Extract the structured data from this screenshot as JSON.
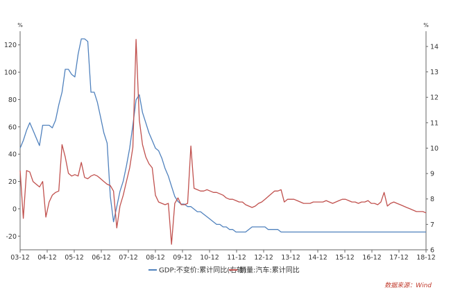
{
  "chart_data": {
    "type": "line",
    "title": "",
    "x_labels": [
      "03-12",
      "04-12",
      "05-12",
      "06-12",
      "07-12",
      "08-12",
      "09-12",
      "10-12",
      "11-12",
      "12-12",
      "13-12",
      "14-12",
      "15-12",
      "16-12",
      "17-12",
      "18-12"
    ],
    "left_axis": {
      "unit": "%",
      "ylim": [
        -30,
        130
      ],
      "ticks": [
        -20,
        0,
        20,
        40,
        60,
        80,
        100,
        120
      ]
    },
    "right_axis": {
      "unit": "%",
      "ylim": [
        6,
        14.6
      ],
      "ticks": [
        6,
        7,
        8,
        9,
        10,
        11,
        12,
        13,
        14
      ]
    },
    "series": [
      {
        "name": "GDP:不变价:累计同比(右轴)",
        "axis": "right",
        "color": "#4f81bd",
        "x": [
          0,
          0.5,
          1,
          1.5,
          2,
          2.5,
          3,
          3.5,
          4,
          4.5,
          5,
          5.5,
          6,
          6.5,
          7,
          7.5,
          8,
          8.5,
          9,
          9.5,
          10,
          10.5,
          11,
          11.5,
          12,
          12.5,
          13,
          13.5,
          14,
          14.5,
          15,
          15.5,
          16,
          16.5,
          17,
          17.5,
          18,
          18.5,
          19,
          19.5,
          20,
          20.5,
          21,
          21.5,
          22,
          22.5,
          23,
          23.5,
          24,
          24.5,
          25,
          25.5,
          26,
          26.5,
          27,
          27.5,
          28,
          28.5,
          29,
          29.5,
          30,
          30.5,
          31,
          31.5,
          32,
          32.5,
          33,
          33.5,
          34,
          34.5,
          35,
          35.5,
          36,
          36.5,
          37,
          37.5,
          38,
          38.5,
          39,
          39.5,
          40,
          40.5,
          41,
          41.5,
          42,
          42.5,
          43,
          43.5,
          44,
          44.5,
          45,
          45.5,
          46,
          46.5,
          47,
          47.5,
          48,
          48.5,
          49,
          49.5,
          50,
          50.5,
          51,
          51.5,
          52,
          52.5,
          53,
          53.5,
          54,
          54.5,
          55,
          55.5,
          56,
          56.5,
          57,
          57.5,
          58,
          58.5,
          59,
          59.5,
          60,
          60.5,
          61,
          61.5,
          62,
          62.5,
          63
        ],
        "y": [
          10.0,
          10.3,
          10.7,
          11.0,
          10.7,
          10.4,
          10.1,
          10.9,
          10.9,
          10.9,
          10.8,
          11.1,
          11.7,
          12.2,
          13.1,
          13.1,
          12.9,
          12.8,
          13.7,
          14.3,
          14.3,
          14.2,
          12.2,
          12.2,
          11.8,
          11.2,
          10.6,
          10.2,
          8.1,
          7.1,
          7.7,
          8.3,
          8.7,
          9.3,
          10.0,
          10.9,
          11.9,
          12.1,
          11.4,
          11.0,
          10.6,
          10.3,
          10.0,
          9.9,
          9.6,
          9.2,
          8.9,
          8.5,
          8.1,
          7.9,
          7.8,
          7.8,
          7.7,
          7.7,
          7.6,
          7.5,
          7.5,
          7.4,
          7.3,
          7.2,
          7.1,
          7.0,
          7.0,
          6.9,
          6.9,
          6.8,
          6.8,
          6.7,
          6.7,
          6.7,
          6.7,
          6.8,
          6.9,
          6.9,
          6.9,
          6.9,
          6.9,
          6.8,
          6.8,
          6.8,
          6.8,
          6.7,
          6.7,
          6.7,
          6.7,
          6.7,
          6.7,
          6.7,
          6.7,
          6.7,
          6.7,
          6.7,
          6.7,
          6.7,
          6.7,
          6.7,
          6.7,
          6.7,
          6.7,
          6.7,
          6.7,
          6.7,
          6.7,
          6.7,
          6.7,
          6.7,
          6.7,
          6.7,
          6.7,
          6.7,
          6.7,
          6.7,
          6.7,
          6.7,
          6.7,
          6.7,
          6.7,
          6.7,
          6.7,
          6.7,
          6.7,
          6.7,
          6.7,
          6.7,
          6.7,
          6.7,
          6.7
        ]
      },
      {
        "name": "销量:汽车:累计同比",
        "axis": "left",
        "color": "#c0504d",
        "x": [
          0,
          0.5,
          1,
          1.5,
          2,
          2.5,
          3,
          3.5,
          4,
          4.5,
          5,
          5.5,
          6,
          6.5,
          7,
          7.5,
          8,
          8.5,
          9,
          9.5,
          10,
          10.5,
          11,
          11.5,
          12,
          12.5,
          13,
          13.5,
          14,
          14.5,
          15,
          15.5,
          16,
          16.5,
          17,
          17.5,
          18,
          18.5,
          19,
          19.5,
          20,
          20.5,
          21,
          21.5,
          22,
          22.5,
          23,
          23.5,
          24,
          24.5,
          25,
          25.5,
          26,
          26.5,
          27,
          27.5,
          28,
          28.5,
          29,
          29.5,
          30,
          30.5,
          31,
          31.5,
          32,
          32.5,
          33,
          33.5,
          34,
          34.5,
          35,
          35.5,
          36,
          36.5,
          37,
          37.5,
          38,
          38.5,
          39,
          39.5,
          40,
          40.5,
          41,
          41.5,
          42,
          42.5,
          43,
          43.5,
          44,
          44.5,
          45,
          45.5,
          46,
          46.5,
          47,
          47.5,
          48,
          48.5,
          49,
          49.5,
          50,
          50.5,
          51,
          51.5,
          52,
          52.5,
          53,
          53.5,
          54,
          54.5,
          55,
          55.5,
          56,
          56.5,
          57,
          57.5,
          58,
          58.5,
          59,
          59.5,
          60,
          60.5,
          61,
          61.5,
          62,
          62.5,
          63
        ],
        "y": [
          28,
          -7,
          28,
          27,
          20,
          18,
          16,
          20,
          -6,
          5,
          10,
          12,
          13,
          47,
          38,
          26,
          24,
          25,
          24,
          34,
          23,
          22,
          24,
          25,
          24,
          22,
          20,
          18,
          17,
          13,
          -14,
          2,
          10,
          20,
          30,
          45,
          124,
          65,
          47,
          38,
          33,
          30,
          10,
          5,
          4,
          3,
          4,
          -26,
          4,
          8,
          3,
          3,
          4,
          46,
          15,
          14,
          13,
          13,
          14,
          13,
          12,
          12,
          11,
          10,
          8,
          7,
          7,
          6,
          5,
          5,
          3,
          2,
          1,
          2,
          4,
          5,
          7,
          9,
          11,
          13,
          13,
          14,
          5,
          7,
          7,
          7,
          6,
          5,
          4,
          4,
          4,
          5,
          5,
          5,
          5,
          6,
          5,
          4,
          5,
          6,
          7,
          7,
          6,
          5,
          5,
          4,
          5,
          5,
          6,
          4,
          4,
          3,
          5,
          12,
          2,
          4,
          5,
          4,
          3,
          2,
          1,
          0,
          -1,
          -2,
          -2,
          -2,
          -3
        ]
      }
    ],
    "legend_position": "bottom",
    "grid": false,
    "source": "数据来源：Wind"
  }
}
